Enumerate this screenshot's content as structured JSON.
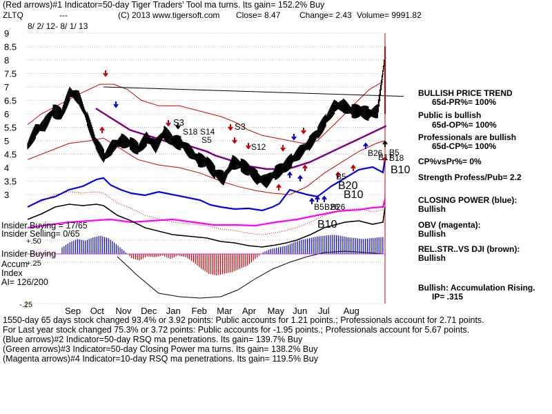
{
  "header": {
    "line1": "(Red arrows)#1 Indicator=50-day Tiger Traders' Tool ma turns. Its gain= 152.2% Buy",
    "ticker": "ZLTQ",
    "dashes": "---",
    "copyright": "(C) 2013 www.tigersoft.com",
    "close": "Close=  8.47",
    "change": "Change= 2.43",
    "volume": "Volume=  9991.82",
    "date_range": "8/ 2/ 12-  8/ 1/ 13"
  },
  "right_panel": {
    "items": [
      "BULLISH PRICE TREND",
      "65d-PR%= 100%",
      "Public is bullish",
      "65d-OP%= 100%",
      "Professionals are bullish",
      "65d-CP%= 100%",
      "CP%vsPr%=  0%",
      "Strength Profess/Pub= 2.2",
      "CLOSING POWER (blue):",
      "Bullish",
      "OBV (magenta):",
      "Bullish",
      "REL.STR..VS DJI (brown):",
      "Bullish",
      "Bullish: Accumulation Rising.",
      "IP=  .315"
    ]
  },
  "left_labels": {
    "insider_buying_1": "Insider Buying = 17/65",
    "insider_selling": "Insider Selling= 0/65",
    "plus50": "+.50",
    "insider_buying_2": "Insider Buying",
    "plus25": "+.25",
    "accum": "Accum",
    "index": "Index",
    "ai": "AI= 126/200",
    "minus25": "-.25"
  },
  "signals": {
    "s3a": "S3",
    "s18": "S18",
    "s14": "S14",
    "s3b": "S3",
    "s5": "S5",
    "s12": "S12",
    "b26a": "B26",
    "b5a": "B5",
    "b18": "B18",
    "b17": "B17",
    "b10a": "B10",
    "b5b": "B5",
    "b20": "B20",
    "b10b": "B10",
    "b5c": "B5",
    "b26b": "B26",
    "b10c": "B10",
    "b26c": "B26"
  },
  "footer": {
    "line1": "1550-day 65 days stock changed  93.4% or  3.92 points:  Public accounts for  1.21 points.;  Professionals account for  2.71 points.",
    "line2": "For Last year stock changed  75.3% or  3.72 points:  Public accounts for -1.95 points.;  Professionals account for  5.67 points.",
    "line3": "(Blue arrows)#2 Indicator=50-day RSQ ma penetrations. Its gain= 139.7% Buy",
    "line4": "(Green arrows)#3 Indicator=50-day Closing Power ma turns. Its gain= 138.2% Buy",
    "line5": "(Magenta arrows)#4 Indicator=10-day RSQ ma penetrations. Its gain= 119.5% Buy"
  },
  "colors": {
    "price": "#000000",
    "ma50": "#800080",
    "bands": "#cc0000",
    "closing_power": "#0000ee",
    "obv": "#ff00ff",
    "rel_str": "#000000",
    "accum_pos": "#0000cc",
    "accum_neg": "#cc0000",
    "grid": "#bbbbbb"
  },
  "chart_data": {
    "type": "line",
    "y_ticks": [
      "9",
      "8.5",
      "8",
      "7.5",
      "7",
      "6.5",
      "6",
      "5.5",
      "5",
      "4.5",
      "4",
      "3.5",
      "3"
    ],
    "x_ticks": [
      "Sep",
      "Oct",
      "Nov",
      "Dec",
      "Jan",
      "Feb",
      "Mar",
      "Apr",
      "May",
      "Jun",
      "Jul",
      "Aug"
    ],
    "ylim": [
      3,
      9
    ],
    "grid": true,
    "price_series": {
      "name": "price",
      "x_month_index": [
        0,
        0.25,
        0.5,
        0.75,
        1,
        1.25,
        1.5,
        1.75,
        2,
        2.25,
        2.5,
        2.75,
        3,
        3.25,
        3.5,
        3.75,
        4,
        4.25,
        4.5,
        4.75,
        5,
        5.25,
        5.5,
        5.75,
        6,
        6.25,
        6.5,
        6.75,
        7,
        7.25,
        7.5,
        7.75,
        8,
        8.25,
        8.5,
        8.75,
        9,
        9.25,
        9.5,
        9.75,
        10,
        10.25,
        10.5
      ],
      "values": [
        4.8,
        5.4,
        5.6,
        6.1,
        6.0,
        6.8,
        6.6,
        5.8,
        4.9,
        4.4,
        4.8,
        5.0,
        4.9,
        4.7,
        5.1,
        4.8,
        5.3,
        5.0,
        4.9,
        4.6,
        4.3,
        4.2,
        3.8,
        3.6,
        4.2,
        4.1,
        3.9,
        3.6,
        3.5,
        3.8,
        4.0,
        4.3,
        4.6,
        4.9,
        5.3,
        5.8,
        6.3,
        6.3,
        6.1,
        6.1,
        6.0,
        6.1,
        8.47
      ]
    },
    "ma50_series": {
      "name": "50-day ma",
      "values": [
        null,
        null,
        null,
        null,
        null,
        null,
        null,
        null,
        6.2,
        6.0,
        5.8,
        5.6,
        5.4,
        5.3,
        5.2,
        5.1,
        5.0,
        4.9,
        4.85,
        4.8,
        4.7,
        4.6,
        4.45,
        4.35,
        4.25,
        4.15,
        4.05,
        4.0,
        3.95,
        3.95,
        3.95,
        4.0,
        4.1,
        4.2,
        4.35,
        4.5,
        4.65,
        4.8,
        4.95,
        5.1,
        5.25,
        5.4,
        5.55
      ]
    },
    "accumulation_index": {
      "ylim": [
        -0.25,
        0.5
      ],
      "values": [
        0.08,
        0.14,
        0.18,
        0.16,
        0.2,
        0.22,
        0.19,
        0.12,
        0.04,
        -0.05,
        -0.08,
        -0.03,
        -0.04,
        -0.02,
        -0.06,
        -0.02,
        -0.04,
        -0.1,
        -0.18,
        -0.24,
        -0.26,
        -0.24,
        -0.22,
        -0.18,
        -0.14,
        -0.06,
        0.02,
        0.06,
        0.08,
        0.1,
        0.14,
        0.17,
        0.19,
        0.21,
        0.22,
        0.23,
        0.22,
        0.2,
        0.19,
        0.18,
        0.19,
        0.2,
        0.21
      ]
    }
  }
}
